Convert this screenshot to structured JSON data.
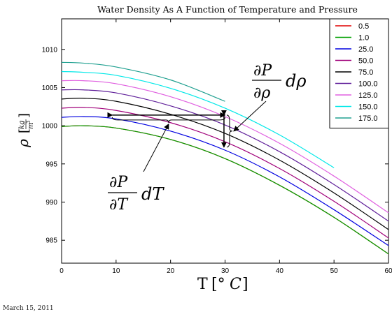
{
  "chart_data": {
    "type": "line",
    "title": "Water Density As A Function of Temperature and Pressure",
    "xlabel": "T [°C]",
    "ylabel": "ρ [kg/m³]",
    "xlim": [
      0,
      60
    ],
    "ylim": [
      982,
      1014
    ],
    "xticks": [
      0,
      10,
      20,
      30,
      40,
      50,
      60
    ],
    "yticks": [
      985,
      990,
      995,
      1000,
      1005,
      1010
    ],
    "grid": false,
    "legend_position": "top-right",
    "series": [
      {
        "name": "0.5",
        "color": "#e00000",
        "x": [
          0,
          4,
          10,
          20,
          30,
          40,
          50,
          60
        ],
        "y": [
          999.9,
          1000.0,
          999.7,
          998.2,
          995.7,
          992.2,
          988.0,
          983.2
        ]
      },
      {
        "name": "1.0",
        "color": "#00a000",
        "x": [
          0,
          4,
          10,
          20,
          30,
          40,
          50,
          60
        ],
        "y": [
          999.9,
          1000.0,
          999.7,
          998.2,
          995.7,
          992.2,
          988.0,
          983.2
        ]
      },
      {
        "name": "25.0",
        "color": "#0000e0",
        "x": [
          0,
          4,
          10,
          20,
          30,
          40,
          50,
          60
        ],
        "y": [
          1001.1,
          1001.2,
          1000.9,
          999.3,
          996.8,
          993.3,
          989.0,
          984.3
        ]
      },
      {
        "name": "50.0",
        "color": "#a0007a",
        "x": [
          0,
          4,
          10,
          20,
          30,
          40,
          50,
          60
        ],
        "y": [
          1002.3,
          1002.4,
          1002.0,
          1000.4,
          997.9,
          994.4,
          990.1,
          985.3
        ]
      },
      {
        "name": "75.0",
        "color": "#000000",
        "x": [
          0,
          4,
          10,
          20,
          30,
          40,
          50,
          60
        ],
        "y": [
          1003.5,
          1003.6,
          1003.2,
          1001.5,
          999.0,
          995.5,
          991.2,
          986.4
        ]
      },
      {
        "name": "100.0",
        "color": "#60209a",
        "x": [
          0,
          4,
          10,
          20,
          30,
          40,
          50,
          60
        ],
        "y": [
          1004.7,
          1004.7,
          1004.3,
          1002.6,
          1000.1,
          996.6,
          992.3,
          987.5
        ]
      },
      {
        "name": "125.0",
        "color": "#e060e0",
        "x": [
          0,
          4,
          10,
          20,
          30,
          40,
          50,
          60
        ],
        "y": [
          1005.9,
          1005.9,
          1005.5,
          1003.8,
          1001.2,
          997.7,
          993.4,
          988.6
        ]
      },
      {
        "name": "150.0",
        "color": "#00e8e8",
        "x": [
          0,
          4,
          10,
          20,
          30,
          40,
          50
        ],
        "y": [
          1007.1,
          1007.0,
          1006.6,
          1004.9,
          1002.3,
          998.8,
          994.5
        ]
      },
      {
        "name": "175.0",
        "color": "#20a090",
        "x": [
          0,
          4,
          10,
          20,
          30
        ],
        "y": [
          1008.3,
          1008.2,
          1007.7,
          1006.0,
          1003.2
        ]
      }
    ],
    "annotations": [
      {
        "text": "∂P/∂ρ dρ"
      },
      {
        "text": "∂P/∂T dT"
      }
    ]
  },
  "footer": {
    "date": "March 15, 2011"
  }
}
